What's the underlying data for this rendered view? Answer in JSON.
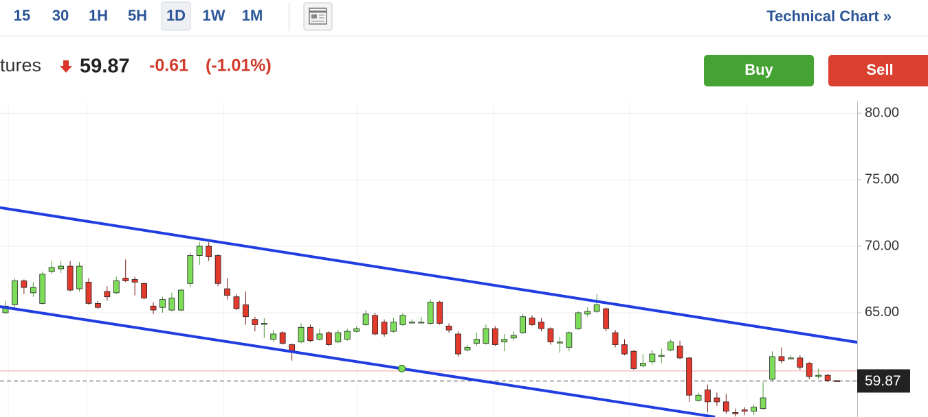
{
  "header": {
    "tabs": [
      "15",
      "30",
      "1H",
      "5H",
      "1D",
      "1W",
      "1M"
    ],
    "active_tab": 4,
    "link": "Technical Chart »",
    "instrument": "tures",
    "price": "59.87",
    "change": "-0.61",
    "change_percent": "(-1.01%)",
    "buy": "Buy",
    "sell": "Sell"
  },
  "chart_data": {
    "type": "candlestick",
    "up_color": "#7ddc5a",
    "down_color": "#e23b2e",
    "grid": true,
    "ylim": [
      57.16,
      80.88
    ],
    "yticks": [
      {
        "value": 65,
        "label": "65.00"
      },
      {
        "value": 70,
        "label": "70.00"
      },
      {
        "value": 75,
        "label": "75.00"
      },
      {
        "value": 80,
        "label": "80.00"
      }
    ],
    "open": [
      65.0,
      65.6,
      67.4,
      66.5,
      65.7,
      68.1,
      68.3,
      68.5,
      66.8,
      67.3,
      65.7,
      66.6,
      66.5,
      67.6,
      67.5,
      67.2,
      65.5,
      65.4,
      65.2,
      65.2,
      67.2,
      69.3,
      70.0,
      69.3,
      66.8,
      66.2,
      65.6,
      64.5,
      64.2,
      63.0,
      63.5,
      62.6,
      62.8,
      63.9,
      63.0,
      63.5,
      62.8,
      63.0,
      63.6,
      64.1,
      64.8,
      64.3,
      63.6,
      64.1,
      64.3,
      64.3,
      64.2,
      65.8,
      64.0,
      63.4,
      62.2,
      62.7,
      62.7,
      63.8,
      62.8,
      63.1,
      63.5,
      64.6,
      64.3,
      63.8,
      62.8,
      62.4,
      63.8,
      64.9,
      65.1,
      65.3,
      63.5,
      62.6,
      62.1,
      61.0,
      61.3,
      61.8,
      62.2,
      62.5,
      61.6,
      58.4,
      59.2,
      58.6,
      58.3,
      57.5,
      57.7,
      57.6,
      57.8,
      60.0,
      61.7,
      61.6,
      61.6,
      61.2,
      60.2,
      60.3,
      59.9
    ],
    "high": [
      65.9,
      67.6,
      67.5,
      67.3,
      68.1,
      68.9,
      68.9,
      68.9,
      68.8,
      67.6,
      65.9,
      67.0,
      67.7,
      69.0,
      67.7,
      67.3,
      65.8,
      66.2,
      66.5,
      66.8,
      69.5,
      70.3,
      70.3,
      69.4,
      67.6,
      66.4,
      66.6,
      64.7,
      64.6,
      63.7,
      63.6,
      62.7,
      64.2,
      64.1,
      63.8,
      63.6,
      63.7,
      63.8,
      64.0,
      65.2,
      65.0,
      64.5,
      64.6,
      65.0,
      64.5,
      64.7,
      66.0,
      65.9,
      64.2,
      63.6,
      62.6,
      63.5,
      64.1,
      64.0,
      63.4,
      63.6,
      64.9,
      64.8,
      64.6,
      63.9,
      63.2,
      63.6,
      65.1,
      65.4,
      66.4,
      65.4,
      63.7,
      63.0,
      62.2,
      61.9,
      62.2,
      62.3,
      63.0,
      62.9,
      61.7,
      59.0,
      59.6,
      59.0,
      58.9,
      57.8,
      57.9,
      58.1,
      59.8,
      62.1,
      62.4,
      61.8,
      61.8,
      61.3,
      60.8,
      60.4,
      59.9
    ],
    "low": [
      64.9,
      65.4,
      66.4,
      66.2,
      65.6,
      67.9,
      68.0,
      66.6,
      66.6,
      65.6,
      65.3,
      65.9,
      66.4,
      67.3,
      66.3,
      66.0,
      64.9,
      65.0,
      65.1,
      65.1,
      66.9,
      68.6,
      68.9,
      67.0,
      66.0,
      65.2,
      64.1,
      63.6,
      63.1,
      62.8,
      62.6,
      61.4,
      62.7,
      62.8,
      62.9,
      62.5,
      62.7,
      62.9,
      63.5,
      64.0,
      63.3,
      63.2,
      63.5,
      64.0,
      64.2,
      64.2,
      64.1,
      64.1,
      63.5,
      61.7,
      62.1,
      62.5,
      62.6,
      62.5,
      62.1,
      62.9,
      63.4,
      64.0,
      63.6,
      62.6,
      62.0,
      62.1,
      63.7,
      64.7,
      65.0,
      63.6,
      62.4,
      61.8,
      60.7,
      60.9,
      61.1,
      61.2,
      62.1,
      61.5,
      58.3,
      58.3,
      57.5,
      58.0,
      57.4,
      57.2,
      57.3,
      57.3,
      57.7,
      59.9,
      61.2,
      61.5,
      60.7,
      60.0,
      60.0,
      59.8,
      59.8
    ],
    "close": [
      65.5,
      67.4,
      66.9,
      66.9,
      67.9,
      68.4,
      68.5,
      66.7,
      68.5,
      65.7,
      65.4,
      66.2,
      67.4,
      67.4,
      67.3,
      66.1,
      65.2,
      66.0,
      66.1,
      66.7,
      69.3,
      70.0,
      69.2,
      67.2,
      66.3,
      65.3,
      64.7,
      64.1,
      64.2,
      63.4,
      62.7,
      62.1,
      63.9,
      62.9,
      63.4,
      62.6,
      63.5,
      63.6,
      63.8,
      64.9,
      63.4,
      63.4,
      64.3,
      64.8,
      64.3,
      64.3,
      65.8,
      64.2,
      63.7,
      61.9,
      62.4,
      63.0,
      63.8,
      62.6,
      63.0,
      63.3,
      64.7,
      64.1,
      63.8,
      62.8,
      62.8,
      63.5,
      65.0,
      65.1,
      65.6,
      63.8,
      62.6,
      61.9,
      60.8,
      61.2,
      61.9,
      61.8,
      62.8,
      61.6,
      58.8,
      58.8,
      58.3,
      58.3,
      57.6,
      57.4,
      57.6,
      57.9,
      58.6,
      61.7,
      61.4,
      61.6,
      60.9,
      60.2,
      60.3,
      59.9,
      59.87
    ],
    "last_price": 59.87,
    "reference_line": 60.62,
    "trend_lines": [
      {
        "from": [
          -0.6,
          72.9
        ],
        "to": [
          98.4,
          62.1
        ]
      },
      {
        "from": [
          -0.6,
          65.46
        ],
        "to": [
          76.8,
          57.16
        ]
      }
    ],
    "anchor_point": [
      42.9,
      60.8
    ]
  }
}
